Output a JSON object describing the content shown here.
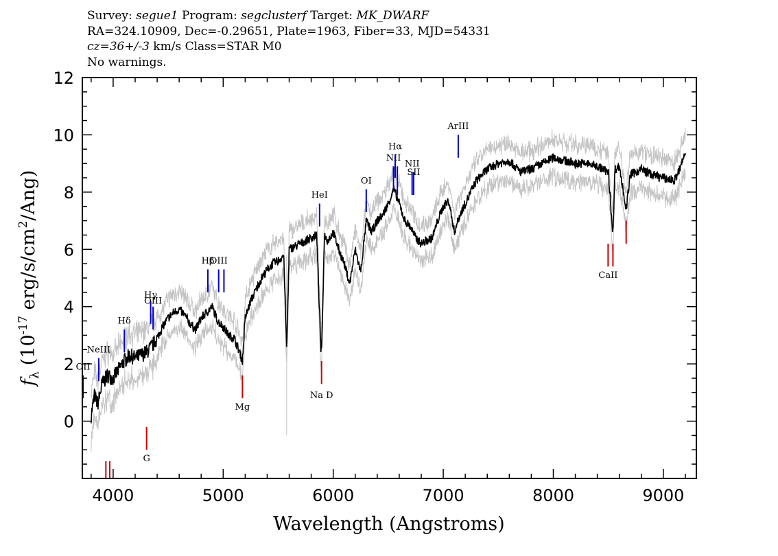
{
  "header": {
    "line1": {
      "survey_label": "Survey:",
      "survey": "segue1",
      "program_label": "Program:",
      "program": "segclusterf",
      "target_label": "Target:",
      "target": "MK_DWARF"
    },
    "line2": "RA=324.10909, Dec=-0.29651, Plate=1963, Fiber=33, MJD=54331",
    "line3": {
      "cz": "cz=36+/-3",
      "rest": " km/s Class=STAR M0"
    },
    "line4": "No warnings."
  },
  "chart_data": {
    "type": "line",
    "xlabel": "Wavelength (Angstroms)",
    "ylabel_prefix": "f",
    "ylabel_sub": "λ",
    "ylabel_main": " (10",
    "ylabel_exp": "-17",
    "ylabel_rest": " erg/s/cm",
    "ylabel_exp2": "2",
    "ylabel_tail": "/Ang)",
    "xlim": [
      3720,
      9300
    ],
    "ylim": [
      -2.0,
      12.0
    ],
    "x_ticks": [
      4000,
      5000,
      6000,
      7000,
      8000,
      9000
    ],
    "x_tick_labels": [
      "4000",
      "5000",
      "6000",
      "7000",
      "8000",
      "9000"
    ],
    "y_ticks": [
      0,
      2,
      4,
      6,
      8,
      10,
      12
    ],
    "y_tick_labels": [
      "0",
      "2",
      "4",
      "6",
      "8",
      "10",
      "12"
    ],
    "grid": false,
    "series": [
      {
        "color": "#000000",
        "x": [
          3800,
          3830,
          3860,
          3900,
          3950,
          4000,
          4050,
          4100,
          4150,
          4200,
          4250,
          4300,
          4350,
          4400,
          4450,
          4500,
          4550,
          4600,
          4650,
          4700,
          4750,
          4800,
          4850,
          4900,
          4950,
          5000,
          5050,
          5100,
          5150,
          5175,
          5200,
          5250,
          5300,
          5350,
          5400,
          5450,
          5500,
          5550,
          5577,
          5600,
          5650,
          5700,
          5750,
          5800,
          5850,
          5889,
          5895,
          5920,
          5950,
          6000,
          6050,
          6100,
          6150,
          6200,
          6250,
          6300,
          6350,
          6400,
          6450,
          6500,
          6550,
          6600,
          6650,
          6700,
          6750,
          6800,
          6850,
          6900,
          6950,
          7000,
          7050,
          7100,
          7150,
          7200,
          7250,
          7300,
          7350,
          7400,
          7500,
          7600,
          7700,
          7800,
          7900,
          8000,
          8100,
          8200,
          8300,
          8400,
          8500,
          8542,
          8560,
          8600,
          8662,
          8700,
          8800,
          8900,
          9000,
          9100,
          9150,
          9200
        ],
        "y": [
          0.2,
          0.9,
          0.6,
          1.3,
          1.6,
          1.5,
          1.8,
          2.1,
          2.3,
          2.2,
          2.3,
          2.4,
          2.6,
          2.9,
          3.3,
          3.6,
          3.8,
          3.9,
          3.7,
          3.4,
          3.2,
          3.6,
          3.8,
          4.0,
          3.5,
          3.3,
          3.0,
          2.9,
          2.4,
          2.1,
          3.6,
          4.2,
          4.6,
          5.0,
          5.3,
          5.5,
          5.6,
          5.8,
          2.5,
          6.0,
          6.1,
          6.2,
          6.3,
          6.4,
          6.5,
          2.4,
          2.5,
          6.5,
          6.3,
          6.6,
          6.0,
          5.5,
          4.8,
          6.0,
          5.2,
          7.0,
          6.6,
          7.0,
          7.2,
          7.6,
          8.1,
          7.6,
          7.0,
          6.8,
          6.4,
          6.2,
          6.3,
          6.4,
          7.0,
          7.5,
          7.7,
          6.6,
          7.2,
          7.6,
          8.0,
          8.4,
          8.6,
          8.8,
          9.0,
          9.1,
          8.7,
          8.8,
          9.0,
          9.2,
          9.1,
          9.0,
          9.0,
          8.9,
          8.7,
          6.5,
          8.8,
          8.9,
          7.4,
          8.6,
          8.8,
          8.6,
          8.5,
          8.4,
          8.8,
          9.4
        ]
      }
    ],
    "lines": [
      {
        "name": "OII",
        "wave": 3727,
        "color": "#0000cc",
        "y0": 0.8,
        "y1": 1.6,
        "label_y": 1.8
      },
      {
        "name": "NeIII",
        "wave": 3869,
        "color": "#0000cc",
        "y0": 1.4,
        "y1": 2.2,
        "label_y": 2.4
      },
      {
        "name": "Hδ",
        "wave": 4102,
        "color": "#0000cc",
        "y0": 2.4,
        "y1": 3.2,
        "label_y": 3.4
      },
      {
        "name": "Hγ",
        "wave": 4341,
        "color": "#0000cc",
        "y0": 3.4,
        "y1": 4.2,
        "label_y": 4.3
      },
      {
        "name": "OIII",
        "wave": 4363,
        "color": "#0000cc",
        "y0": 3.2,
        "y1": 4.0,
        "label_y": 4.1
      },
      {
        "name": "Hβ",
        "wave": 4861,
        "color": "#0000cc",
        "y0": 4.5,
        "y1": 5.3,
        "label_y": 5.5
      },
      {
        "name": "OIII",
        "wave": 4959,
        "color": "#0000cc",
        "y0": 4.5,
        "y1": 5.3,
        "label_y": 5.5
      },
      {
        "name": "",
        "wave": 5007,
        "color": "#0000cc",
        "y0": 4.5,
        "y1": 5.3
      },
      {
        "name": "HeI",
        "wave": 5876,
        "color": "#0000cc",
        "y0": 6.8,
        "y1": 7.6,
        "label_y": 7.8
      },
      {
        "name": "OI",
        "wave": 6300,
        "color": "#0000cc",
        "y0": 7.3,
        "y1": 8.1,
        "label_y": 8.3
      },
      {
        "name": "NII",
        "wave": 6548,
        "color": "#0000cc",
        "y0": 8.1,
        "y1": 8.9,
        "label_y": 9.1
      },
      {
        "name": "Hα",
        "wave": 6563,
        "color": "#0000cc",
        "y0": 8.5,
        "y1": 9.3,
        "label_y": 9.5
      },
      {
        "name": "",
        "wave": 6583,
        "color": "#0000cc",
        "y0": 7.9,
        "y1": 8.9
      },
      {
        "name": "NII",
        "wave": 6717,
        "color": "#0000cc",
        "y0": 7.9,
        "y1": 8.7,
        "label_y": 8.9
      },
      {
        "name": "SII",
        "wave": 6731,
        "color": "#0000cc",
        "y0": 7.9,
        "y1": 8.7,
        "label_y": 8.6
      },
      {
        "name": "ArIII",
        "wave": 7136,
        "color": "#0000cc",
        "y0": 9.2,
        "y1": 10.0,
        "label_y": 10.2
      },
      {
        "name": "",
        "wave": 3934,
        "color": "#cc0000",
        "y0": -2.0,
        "y1": -1.4
      },
      {
        "name": "",
        "wave": 3969,
        "color": "#cc0000",
        "y0": -2.0,
        "y1": -1.4
      },
      {
        "name": "G",
        "wave": 4304,
        "color": "#cc0000",
        "y0": -1.0,
        "y1": -0.2,
        "label_y": -1.4
      },
      {
        "name": "Mg",
        "wave": 5175,
        "color": "#cc0000",
        "y0": 0.8,
        "y1": 1.6,
        "label_y": 0.4
      },
      {
        "name": "Na D",
        "wave": 5894,
        "color": "#cc0000",
        "y0": 1.3,
        "y1": 2.1,
        "label_y": 0.8
      },
      {
        "name": "CaII",
        "wave": 8498,
        "color": "#cc0000",
        "y0": 5.4,
        "y1": 6.2,
        "label_y": 5.0
      },
      {
        "name": "",
        "wave": 8542,
        "color": "#cc0000",
        "y0": 5.4,
        "y1": 6.2
      },
      {
        "name": "",
        "wave": 8662,
        "color": "#cc0000",
        "y0": 6.2,
        "y1": 7.0
      }
    ]
  }
}
